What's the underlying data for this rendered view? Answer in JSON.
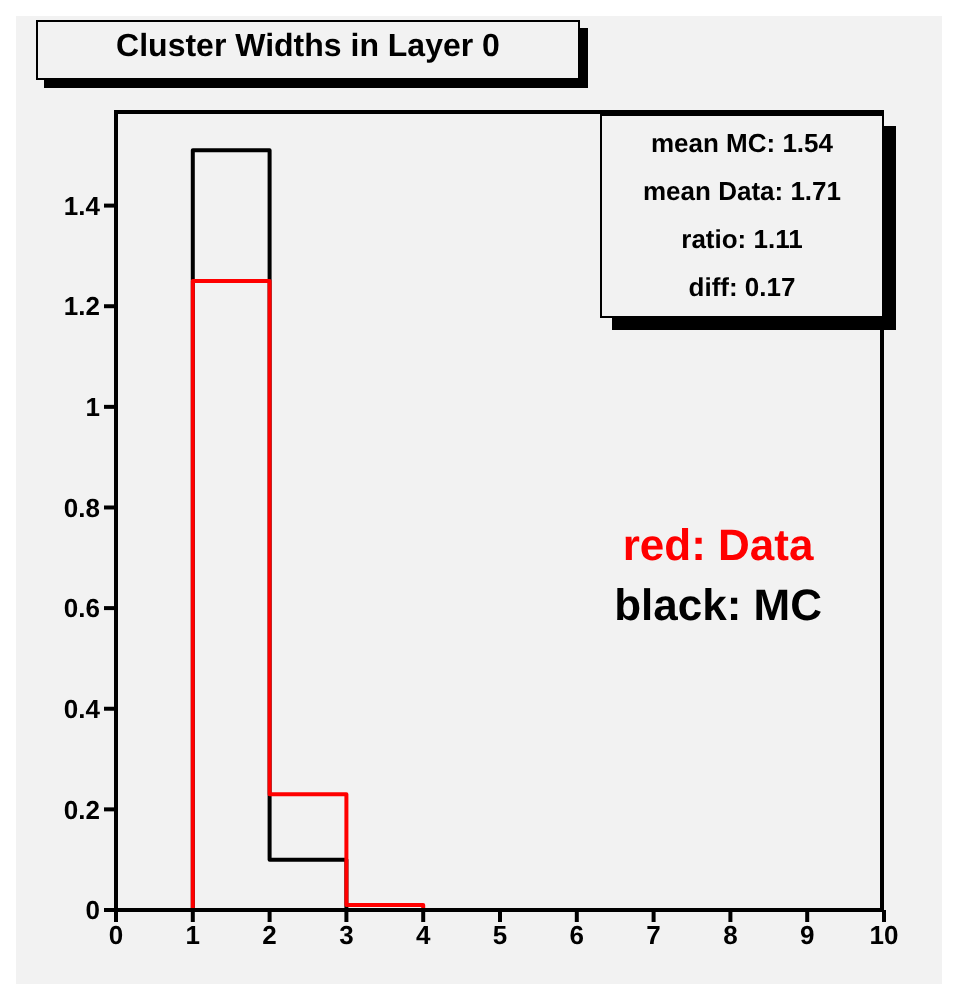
{
  "chart_data": {
    "type": "histogram",
    "title": "Cluster Widths in Layer 0",
    "bins": [
      0,
      1,
      2,
      3,
      4,
      5,
      6,
      7,
      8,
      9,
      10
    ],
    "series": [
      {
        "name": "black: MC",
        "color": "#000000",
        "values": [
          0,
          1.51,
          0.1,
          0,
          0,
          0,
          0,
          0,
          0,
          0
        ]
      },
      {
        "name": "red: Data",
        "color": "#ff0000",
        "values": [
          0,
          1.25,
          0.23,
          0.01,
          0,
          0,
          0,
          0,
          0,
          0
        ]
      }
    ],
    "xlim": [
      0,
      10
    ],
    "xticks": [
      0,
      1,
      2,
      3,
      4,
      5,
      6,
      7,
      8,
      9,
      10
    ],
    "ylim": [
      0,
      1.59
    ],
    "yticks": [
      0,
      0.2,
      0.4,
      0.6,
      0.8,
      1,
      1.2,
      1.4
    ],
    "grid": false,
    "legend": "right",
    "annotations": [
      "mean MC: 1.54",
      "mean Data: 1.71",
      "ratio: 1.11",
      "diff: 0.17"
    ]
  }
}
